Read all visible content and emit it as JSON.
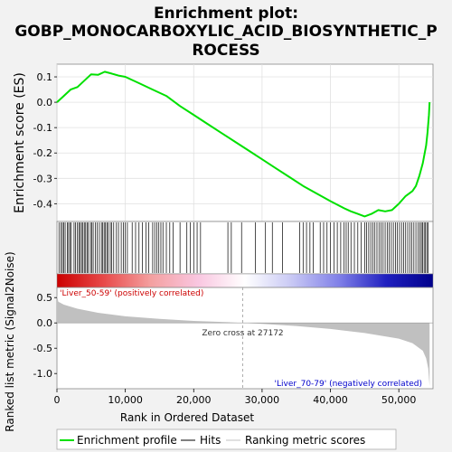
{
  "chart_data": {
    "type": "line",
    "title_lines": [
      "Enrichment plot:",
      "GOBP_MONOCARBOXYLIC_ACID_BIOSYNTHETIC_P",
      "ROCESS"
    ],
    "top_panel": {
      "ylabel": "Enrichment score (ES)",
      "ylim": [
        -0.47,
        0.15
      ],
      "yticks": [
        0.1,
        0.0,
        -0.1,
        -0.2,
        -0.3,
        -0.4
      ],
      "ytick_labels": [
        "0.1",
        "0.0",
        "-0.1",
        "-0.2",
        "-0.3",
        "-0.4"
      ],
      "grid": true,
      "series_color": "#00e000",
      "es_curve": {
        "x": [
          0,
          1000,
          2000,
          3000,
          4000,
          5000,
          6000,
          7000,
          8000,
          9000,
          10000,
          12000,
          14000,
          16000,
          18000,
          20000,
          22000,
          24000,
          26000,
          28000,
          30000,
          32000,
          34000,
          36000,
          38000,
          40000,
          42000,
          43000,
          44000,
          45000,
          46000,
          47000,
          48000,
          49000,
          50000,
          51000,
          52000,
          52500,
          53000,
          53500,
          54000,
          54200,
          54400,
          54500
        ],
        "y": [
          0.0,
          0.025,
          0.05,
          0.06,
          0.085,
          0.11,
          0.108,
          0.12,
          0.113,
          0.105,
          0.1,
          0.075,
          0.05,
          0.025,
          -0.015,
          -0.05,
          -0.085,
          -0.12,
          -0.155,
          -0.19,
          -0.225,
          -0.26,
          -0.295,
          -0.33,
          -0.36,
          -0.39,
          -0.418,
          -0.43,
          -0.44,
          -0.45,
          -0.44,
          -0.425,
          -0.43,
          -0.425,
          -0.4,
          -0.37,
          -0.35,
          -0.33,
          -0.29,
          -0.24,
          -0.17,
          -0.12,
          -0.05,
          0.0
        ]
      }
    },
    "hits_panel": {
      "hit_color": "#000000",
      "hit_positions": [
        300,
        600,
        800,
        1000,
        1200,
        1500,
        1700,
        1900,
        2100,
        2500,
        2700,
        3000,
        3200,
        3400,
        3600,
        3800,
        4000,
        4200,
        4400,
        4600,
        4900,
        5100,
        5300,
        5600,
        5900,
        6200,
        6500,
        6700,
        6900,
        7100,
        7300,
        7500,
        7800,
        8000,
        8300,
        8700,
        9000,
        9400,
        9700,
        10000,
        10300,
        11000,
        11500,
        12000,
        12500,
        13000,
        13400,
        14000,
        14300,
        14600,
        14900,
        15200,
        15500,
        16000,
        16500,
        17000,
        18000,
        19000,
        19500,
        20000,
        20500,
        21000,
        25000,
        25500,
        27000,
        29000,
        30500,
        31500,
        33000,
        35500,
        36000,
        36500,
        37000,
        37500,
        38500,
        39000,
        39500,
        40000,
        40500,
        41000,
        41500,
        42000,
        42300,
        42600,
        43000,
        43500,
        44000,
        44500,
        45000,
        45300,
        45600,
        45900,
        46200,
        46500,
        46800,
        47100,
        47400,
        47700,
        48000,
        48300,
        48600,
        48900,
        49200,
        49500,
        49800,
        50100,
        50400,
        50700,
        51000,
        51300,
        51600,
        51900,
        52200,
        52500,
        52800,
        53100,
        53300,
        53500,
        53700,
        53900,
        54100,
        54300
      ]
    },
    "rank_bar": {
      "gradient_stops": [
        "#cc0000",
        "#e84a4a",
        "#f4a0a0",
        "#f9c6e0",
        "#ffffff",
        "#c8c8f4",
        "#8080e8",
        "#2020c0",
        "#00008b"
      ],
      "left_label": "'Liver_50-59' (positively correlated)",
      "left_label_color": "#cc0000",
      "right_label": "'Liver_70-79' (negatively correlated)",
      "right_label_color": "#0000cc"
    },
    "metric_panel": {
      "ylabel": "Ranked list metric (Signal2Noise)",
      "ylim": [
        -1.3,
        0.7
      ],
      "yticks": [
        0.5,
        0.0,
        -0.5,
        -1.0
      ],
      "ytick_labels": [
        "0.5",
        "0.0",
        "-0.5",
        "-1.0"
      ],
      "fill_color": "#c0c0c0",
      "zero_cross": 27172,
      "zero_cross_label": "Zero cross at 27172",
      "metric_curve": {
        "x": [
          0,
          200,
          1000,
          3000,
          6000,
          10000,
          15000,
          20000,
          25000,
          27172,
          30000,
          35000,
          40000,
          45000,
          50000,
          52000,
          53500,
          54000,
          54300,
          54500
        ],
        "y": [
          0.55,
          0.42,
          0.36,
          0.28,
          0.2,
          0.13,
          0.08,
          0.04,
          0.015,
          0.0,
          -0.02,
          -0.06,
          -0.12,
          -0.2,
          -0.31,
          -0.4,
          -0.55,
          -0.7,
          -0.9,
          -1.25
        ]
      }
    },
    "xaxis": {
      "xlabel": "Rank in Ordered Dataset",
      "xlim": [
        0,
        55000
      ],
      "xticks": [
        0,
        10000,
        20000,
        30000,
        40000,
        50000
      ],
      "xtick_labels": [
        "0",
        "10,000",
        "20,000",
        "30,000",
        "40,000",
        "50,000"
      ]
    },
    "legend": {
      "placement": "bottom",
      "entries": [
        {
          "label": "Enrichment profile",
          "color": "#00e000"
        },
        {
          "label": "Hits",
          "color": "#000000"
        },
        {
          "label": "Ranking metric scores",
          "color": "#c0c0c0"
        }
      ]
    }
  }
}
